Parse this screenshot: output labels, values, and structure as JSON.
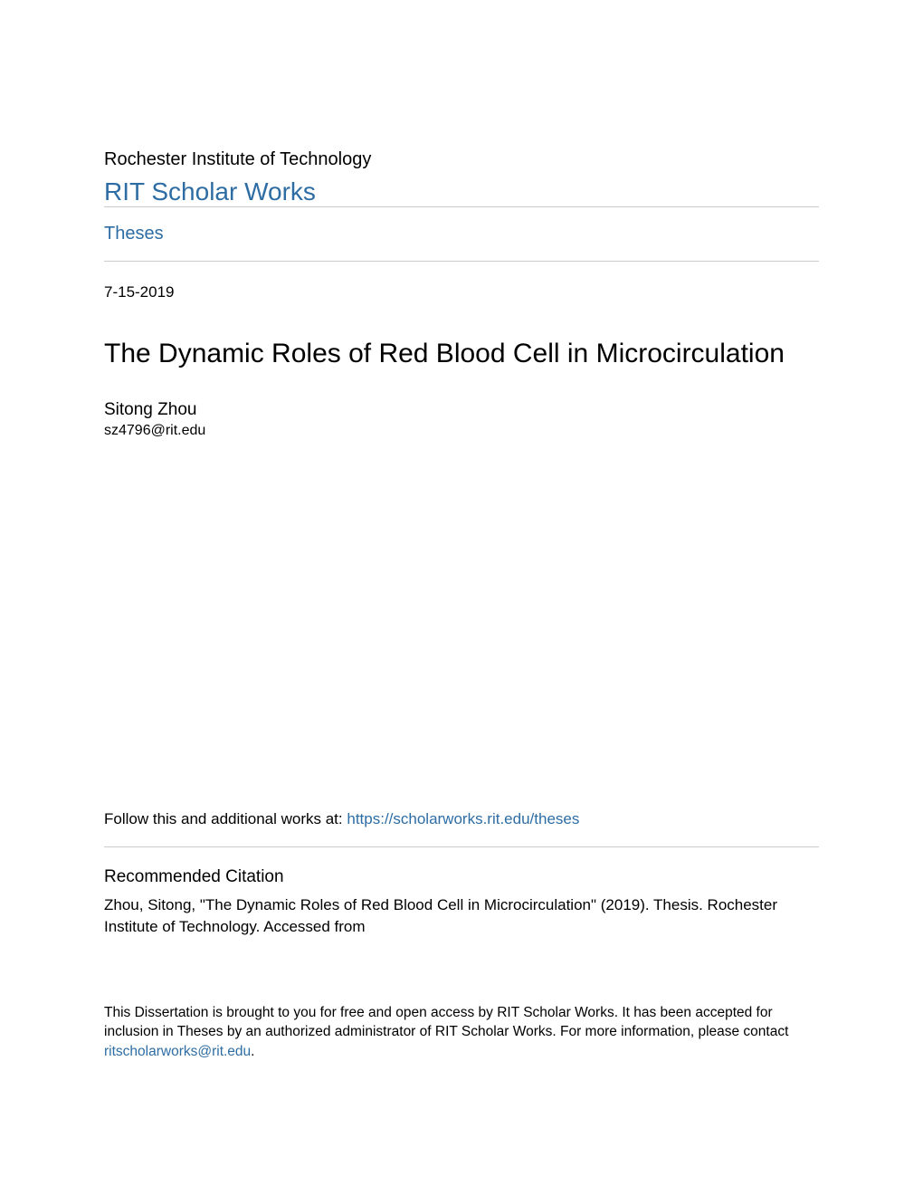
{
  "colors": {
    "link": "#2e6da4",
    "text": "#000000",
    "divider": "#cccccc",
    "background": "#ffffff"
  },
  "typography": {
    "institution_fontsize": 20,
    "repo_name_fontsize": 28,
    "title_fontsize": 30,
    "body_fontsize": 17,
    "small_fontsize": 15.5,
    "author_fontsize": 19
  },
  "header": {
    "institution": "Rochester Institute of Technology",
    "repository_name": "RIT Scholar Works",
    "collection": "Theses"
  },
  "record": {
    "date": "7-15-2019",
    "title": "The Dynamic Roles of Red Blood Cell in Microcirculation",
    "author": "Sitong Zhou",
    "author_email": "sz4796@rit.edu"
  },
  "follow": {
    "prefix": "Follow this and additional works at: ",
    "url_label": "https://scholarworks.rit.edu/theses"
  },
  "citation": {
    "heading": "Recommended Citation",
    "text": "Zhou, Sitong, \"The Dynamic Roles of Red Blood Cell in Microcirculation\" (2019). Thesis. Rochester Institute of Technology. Accessed from"
  },
  "disclaimer": {
    "text": "This Dissertation is brought to you for free and open access by RIT Scholar Works. It has been accepted for inclusion in Theses by an authorized administrator of RIT Scholar Works. For more information, please contact ",
    "contact_email": "ritscholarworks@rit.edu",
    "period": "."
  }
}
